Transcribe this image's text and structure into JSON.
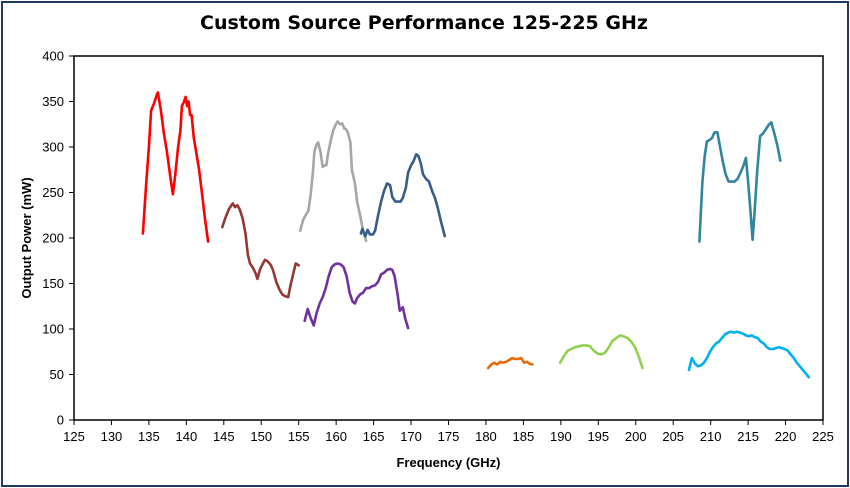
{
  "chart_data": {
    "type": "line",
    "title": "Custom Source Performance 125-225 GHz",
    "xlabel": "Frequency (GHz)",
    "ylabel": "Output Power (mW)",
    "xlim": [
      125,
      225
    ],
    "ylim": [
      0,
      400
    ],
    "xticks": [
      125,
      130,
      135,
      140,
      145,
      150,
      155,
      160,
      165,
      170,
      175,
      180,
      185,
      190,
      195,
      200,
      205,
      210,
      215,
      220,
      225
    ],
    "yticks": [
      0,
      50,
      100,
      150,
      200,
      250,
      300,
      350,
      400
    ],
    "grid": false,
    "legend": "none",
    "series": [
      {
        "color": "#ff0000",
        "points": [
          [
            134.2,
            205
          ],
          [
            134.6,
            255
          ],
          [
            135.0,
            300
          ],
          [
            135.3,
            340
          ],
          [
            135.7,
            348
          ],
          [
            136.0,
            356
          ],
          [
            136.2,
            360
          ],
          [
            136.6,
            340
          ],
          [
            137.0,
            315
          ],
          [
            137.4,
            295
          ],
          [
            137.9,
            265
          ],
          [
            138.2,
            248
          ],
          [
            138.5,
            268
          ],
          [
            138.9,
            300
          ],
          [
            139.2,
            318
          ],
          [
            139.4,
            345
          ],
          [
            139.7,
            350
          ],
          [
            139.9,
            355
          ],
          [
            140.1,
            345
          ],
          [
            140.3,
            350
          ],
          [
            140.5,
            335
          ],
          [
            140.7,
            335
          ],
          [
            141.0,
            310
          ],
          [
            141.3,
            295
          ],
          [
            141.7,
            275
          ],
          [
            142.1,
            248
          ],
          [
            142.5,
            220
          ],
          [
            142.9,
            196
          ]
        ]
      },
      {
        "color": "#953735",
        "points": [
          [
            144.8,
            212
          ],
          [
            145.2,
            222
          ],
          [
            145.7,
            232
          ],
          [
            146.2,
            238
          ],
          [
            146.5,
            234
          ],
          [
            146.8,
            236
          ],
          [
            147.1,
            232
          ],
          [
            147.5,
            222
          ],
          [
            147.9,
            205
          ],
          [
            148.2,
            182
          ],
          [
            148.5,
            172
          ],
          [
            148.9,
            167
          ],
          [
            149.2,
            162
          ],
          [
            149.5,
            155
          ],
          [
            149.8,
            165
          ],
          [
            150.1,
            170
          ],
          [
            150.5,
            176
          ],
          [
            150.9,
            174
          ],
          [
            151.3,
            170
          ],
          [
            151.6,
            164
          ],
          [
            152.0,
            152
          ],
          [
            152.4,
            144
          ],
          [
            152.8,
            138
          ],
          [
            153.2,
            136
          ],
          [
            153.6,
            135
          ],
          [
            153.9,
            148
          ],
          [
            154.3,
            162
          ],
          [
            154.6,
            172
          ],
          [
            155.0,
            170
          ]
        ]
      },
      {
        "color": "#a6a6a6",
        "points": [
          [
            155.2,
            208
          ],
          [
            155.6,
            220
          ],
          [
            156.0,
            226
          ],
          [
            156.3,
            230
          ],
          [
            156.6,
            248
          ],
          [
            156.9,
            272
          ],
          [
            157.1,
            295
          ],
          [
            157.4,
            303
          ],
          [
            157.6,
            305
          ],
          [
            157.9,
            295
          ],
          [
            158.2,
            278
          ],
          [
            158.5,
            280
          ],
          [
            158.7,
            280
          ],
          [
            158.9,
            292
          ],
          [
            159.3,
            308
          ],
          [
            159.6,
            318
          ],
          [
            159.9,
            324
          ],
          [
            160.2,
            328
          ],
          [
            160.5,
            325
          ],
          [
            160.8,
            326
          ],
          [
            161.1,
            320
          ],
          [
            161.3,
            320
          ],
          [
            161.6,
            315
          ],
          [
            161.9,
            305
          ],
          [
            162.1,
            275
          ],
          [
            162.5,
            260
          ],
          [
            162.8,
            240
          ],
          [
            163.2,
            225
          ],
          [
            163.6,
            208
          ],
          [
            164.0,
            197
          ]
        ]
      },
      {
        "color": "#385d8a",
        "points": [
          [
            163.3,
            205
          ],
          [
            163.5,
            210
          ],
          [
            163.9,
            202
          ],
          [
            164.2,
            209
          ],
          [
            164.5,
            204
          ],
          [
            164.9,
            204
          ],
          [
            165.2,
            208
          ],
          [
            165.6,
            225
          ],
          [
            166.0,
            240
          ],
          [
            166.4,
            252
          ],
          [
            166.8,
            260
          ],
          [
            167.2,
            258
          ],
          [
            167.5,
            245
          ],
          [
            167.9,
            240
          ],
          [
            168.2,
            240
          ],
          [
            168.6,
            240
          ],
          [
            168.9,
            244
          ],
          [
            169.3,
            255
          ],
          [
            169.6,
            272
          ],
          [
            170.0,
            280
          ],
          [
            170.3,
            284
          ],
          [
            170.7,
            292
          ],
          [
            171.0,
            290
          ],
          [
            171.3,
            282
          ],
          [
            171.6,
            270
          ],
          [
            172.0,
            265
          ],
          [
            172.4,
            262
          ],
          [
            172.8,
            252
          ],
          [
            173.2,
            244
          ],
          [
            173.6,
            232
          ],
          [
            174.0,
            218
          ],
          [
            174.5,
            202
          ]
        ]
      },
      {
        "color": "#7030a0",
        "points": [
          [
            155.8,
            109
          ],
          [
            156.2,
            122
          ],
          [
            156.6,
            112
          ],
          [
            157.0,
            104
          ],
          [
            157.4,
            118
          ],
          [
            157.8,
            128
          ],
          [
            158.2,
            135
          ],
          [
            158.6,
            145
          ],
          [
            159.0,
            158
          ],
          [
            159.4,
            168
          ],
          [
            159.8,
            171
          ],
          [
            160.2,
            172
          ],
          [
            160.6,
            171
          ],
          [
            161.0,
            168
          ],
          [
            161.4,
            158
          ],
          [
            161.8,
            140
          ],
          [
            162.2,
            130
          ],
          [
            162.5,
            128
          ],
          [
            162.8,
            134
          ],
          [
            163.2,
            138
          ],
          [
            163.6,
            140
          ],
          [
            164.0,
            145
          ],
          [
            164.4,
            145
          ],
          [
            164.8,
            147
          ],
          [
            165.2,
            148
          ],
          [
            165.6,
            152
          ],
          [
            166.0,
            160
          ],
          [
            166.4,
            162
          ],
          [
            166.8,
            165
          ],
          [
            167.2,
            166
          ],
          [
            167.5,
            165
          ],
          [
            167.8,
            158
          ],
          [
            168.2,
            138
          ],
          [
            168.5,
            120
          ],
          [
            168.9,
            124
          ],
          [
            169.2,
            112
          ],
          [
            169.6,
            101
          ]
        ]
      },
      {
        "color": "#e46c0a",
        "points": [
          [
            180.3,
            57
          ],
          [
            180.7,
            61
          ],
          [
            181.1,
            63
          ],
          [
            181.5,
            61
          ],
          [
            181.9,
            64
          ],
          [
            182.3,
            63
          ],
          [
            182.7,
            64
          ],
          [
            183.1,
            66
          ],
          [
            183.5,
            68
          ],
          [
            183.9,
            67
          ],
          [
            184.3,
            67
          ],
          [
            184.7,
            68
          ],
          [
            185.1,
            63
          ],
          [
            185.5,
            64
          ],
          [
            185.8,
            62
          ],
          [
            186.2,
            61
          ]
        ]
      },
      {
        "color": "#92d050",
        "points": [
          [
            189.9,
            63
          ],
          [
            190.4,
            70
          ],
          [
            190.9,
            76
          ],
          [
            191.4,
            78
          ],
          [
            191.9,
            80
          ],
          [
            192.4,
            81
          ],
          [
            192.9,
            82
          ],
          [
            193.4,
            82
          ],
          [
            193.9,
            81
          ],
          [
            194.4,
            76
          ],
          [
            194.9,
            73
          ],
          [
            195.4,
            72
          ],
          [
            195.9,
            74
          ],
          [
            196.4,
            80
          ],
          [
            196.9,
            87
          ],
          [
            197.4,
            90
          ],
          [
            197.9,
            93
          ],
          [
            198.4,
            92
          ],
          [
            198.9,
            90
          ],
          [
            199.4,
            86
          ],
          [
            199.9,
            80
          ],
          [
            200.4,
            70
          ],
          [
            200.9,
            57
          ]
        ]
      },
      {
        "color": "#31859c",
        "points": [
          [
            208.5,
            196
          ],
          [
            208.9,
            262
          ],
          [
            209.2,
            290
          ],
          [
            209.5,
            306
          ],
          [
            209.9,
            308
          ],
          [
            210.2,
            310
          ],
          [
            210.5,
            316
          ],
          [
            210.9,
            316
          ],
          [
            211.2,
            303
          ],
          [
            211.6,
            285
          ],
          [
            212.0,
            270
          ],
          [
            212.4,
            262
          ],
          [
            212.8,
            262
          ],
          [
            213.2,
            262
          ],
          [
            213.6,
            265
          ],
          [
            214.0,
            272
          ],
          [
            214.4,
            280
          ],
          [
            214.7,
            288
          ],
          [
            215.0,
            262
          ],
          [
            215.3,
            232
          ],
          [
            215.6,
            198
          ],
          [
            215.9,
            232
          ],
          [
            216.2,
            272
          ],
          [
            216.6,
            312
          ],
          [
            217.0,
            315
          ],
          [
            217.4,
            320
          ],
          [
            217.8,
            325
          ],
          [
            218.1,
            327
          ],
          [
            218.5,
            315
          ],
          [
            218.9,
            302
          ],
          [
            219.3,
            285
          ]
        ]
      },
      {
        "color": "#00b0f0",
        "points": [
          [
            207.1,
            55
          ],
          [
            207.5,
            68
          ],
          [
            207.9,
            62
          ],
          [
            208.3,
            59
          ],
          [
            208.7,
            60
          ],
          [
            209.1,
            63
          ],
          [
            209.5,
            68
          ],
          [
            209.9,
            75
          ],
          [
            210.3,
            80
          ],
          [
            210.7,
            84
          ],
          [
            211.1,
            86
          ],
          [
            211.5,
            90
          ],
          [
            211.9,
            94
          ],
          [
            212.3,
            96
          ],
          [
            212.7,
            97
          ],
          [
            213.1,
            96
          ],
          [
            213.5,
            97
          ],
          [
            213.9,
            96
          ],
          [
            214.3,
            95
          ],
          [
            214.7,
            93
          ],
          [
            215.1,
            92
          ],
          [
            215.5,
            93
          ],
          [
            215.9,
            91
          ],
          [
            216.3,
            90
          ],
          [
            216.7,
            86
          ],
          [
            217.1,
            84
          ],
          [
            217.5,
            80
          ],
          [
            217.9,
            78
          ],
          [
            218.3,
            78
          ],
          [
            218.7,
            79
          ],
          [
            219.1,
            80
          ],
          [
            219.5,
            79
          ],
          [
            219.9,
            78
          ],
          [
            220.3,
            76
          ],
          [
            220.7,
            72
          ],
          [
            221.1,
            68
          ],
          [
            221.5,
            63
          ],
          [
            221.9,
            59
          ],
          [
            222.3,
            55
          ],
          [
            222.7,
            51
          ],
          [
            223.1,
            47
          ]
        ]
      }
    ]
  }
}
